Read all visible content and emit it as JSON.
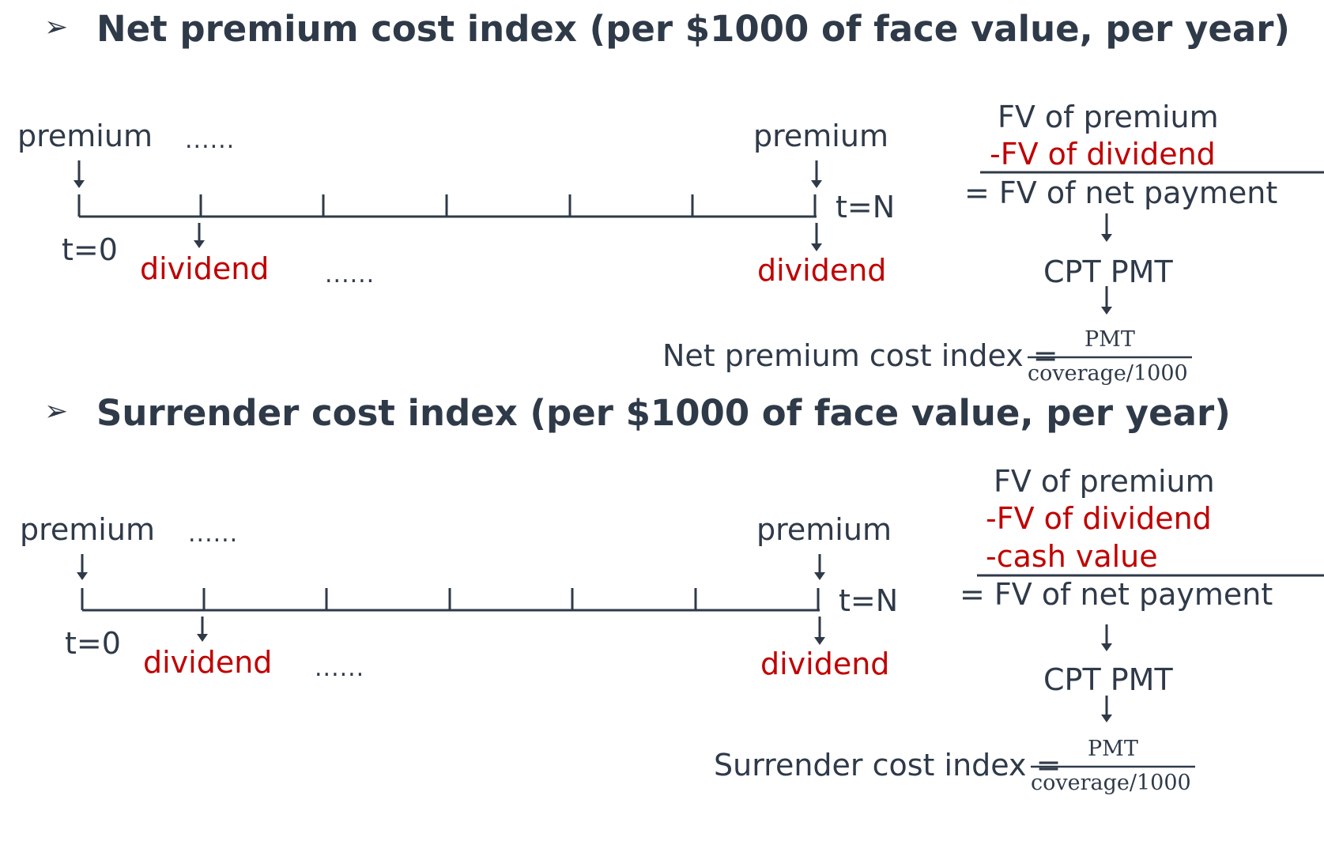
{
  "section1": {
    "bullet": "➢",
    "title": "Net premium cost index (per $1000 of face value, per year)",
    "premium_start": "premium",
    "premium_end": "premium",
    "dots_top": "......",
    "dots_bottom": "......",
    "t0": "t=0",
    "tN": "t=N",
    "dividend_start": "dividend",
    "dividend_end": "dividend",
    "calc": {
      "line1": "FV of premium",
      "line2": "-FV of dividend",
      "result": "= FV of net payment",
      "step": "CPT PMT"
    },
    "formula": {
      "label": "Net premium cost index =",
      "numerator": "PMT",
      "denominator": "coverage/1000"
    }
  },
  "section2": {
    "bullet": "➢",
    "title": "Surrender cost index (per $1000 of face value, per year)",
    "premium_start": "premium",
    "premium_end": "premium",
    "dots_top": "......",
    "dots_bottom": "......",
    "t0": "t=0",
    "tN": "t=N",
    "dividend_start": "dividend",
    "dividend_end": "dividend",
    "calc": {
      "line1": "FV of premium",
      "line2": "-FV of dividend",
      "line3": "-cash value",
      "result": "= FV of net payment",
      "step": "CPT PMT"
    },
    "formula": {
      "label": "Surrender cost index =",
      "numerator": "PMT",
      "denominator": "coverage/1000"
    }
  },
  "colors": {
    "text": "#2f3a49",
    "accent_red": "#c00000"
  }
}
